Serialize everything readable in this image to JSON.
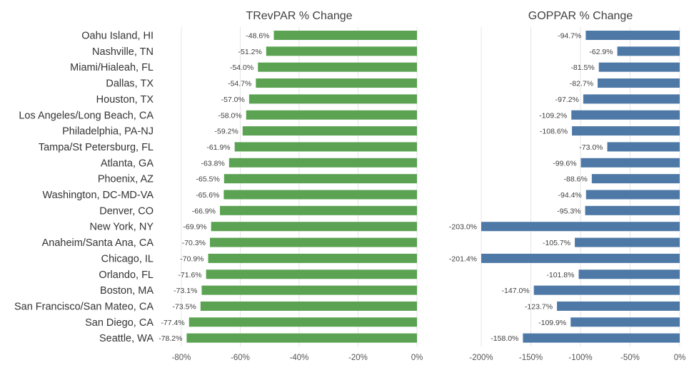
{
  "chart_data": {
    "type": "bar",
    "orientation": "horizontal",
    "categories": [
      "Oahu Island, HI",
      "Nashville, TN",
      "Miami/Hialeah, FL",
      "Dallas, TX",
      "Houston, TX",
      "Los Angeles/Long Beach, CA",
      "Philadelphia, PA-NJ",
      "Tampa/St Petersburg, FL",
      "Atlanta, GA",
      "Phoenix, AZ",
      "Washington, DC-MD-VA",
      "Denver, CO",
      "New York, NY",
      "Anaheim/Santa Ana, CA",
      "Chicago, IL",
      "Orlando, FL",
      "Boston, MA",
      "San Francisco/San Mateo, CA",
      "San Diego, CA",
      "Seattle, WA"
    ],
    "grid": true,
    "panels": [
      {
        "title": "TRevPAR % Change",
        "color": "#5ba352",
        "xlim": [
          -80,
          0
        ],
        "ticks": [
          -80,
          -60,
          -40,
          -20,
          0
        ],
        "tick_labels": [
          "-80%",
          "-60%",
          "-40%",
          "-20%",
          "0%"
        ],
        "values": [
          -48.6,
          -51.2,
          -54.0,
          -54.7,
          -57.0,
          -58.0,
          -59.2,
          -61.9,
          -63.8,
          -65.5,
          -65.6,
          -66.9,
          -69.9,
          -70.3,
          -70.9,
          -71.6,
          -73.1,
          -73.5,
          -77.4,
          -78.2
        ],
        "value_labels": [
          "-48.6%",
          "-51.2%",
          "-54.0%",
          "-54.7%",
          "-57.0%",
          "-58.0%",
          "-59.2%",
          "-61.9%",
          "-63.8%",
          "-65.5%",
          "-65.6%",
          "-66.9%",
          "-69.9%",
          "-70.3%",
          "-70.9%",
          "-71.6%",
          "-73.1%",
          "-73.5%",
          "-77.4%",
          "-78.2%"
        ]
      },
      {
        "title": "GOPPAR % Change",
        "color": "#4e79a7",
        "xlim": [
          -200,
          0
        ],
        "ticks": [
          -200,
          -150,
          -100,
          -50,
          0
        ],
        "tick_labels": [
          "-200%",
          "-150%",
          "-100%",
          "-50%",
          "0%"
        ],
        "values": [
          -94.7,
          -62.9,
          -81.5,
          -82.7,
          -97.2,
          -109.2,
          -108.6,
          -73.0,
          -99.6,
          -88.6,
          -94.4,
          -95.3,
          -203.0,
          -105.7,
          -201.4,
          -101.8,
          -147.0,
          -123.7,
          -109.9,
          -158.0
        ],
        "value_labels": [
          "-94.7%",
          "-62.9%",
          "-81.5%",
          "-82.7%",
          "-97.2%",
          "-109.2%",
          "-108.6%",
          "-73.0%",
          "-99.6%",
          "-88.6%",
          "-94.4%",
          "-95.3%",
          "-203.0%",
          "-105.7%",
          "-201.4%",
          "-101.8%",
          "-147.0%",
          "-123.7%",
          "-109.9%",
          "-158.0%"
        ]
      }
    ]
  }
}
